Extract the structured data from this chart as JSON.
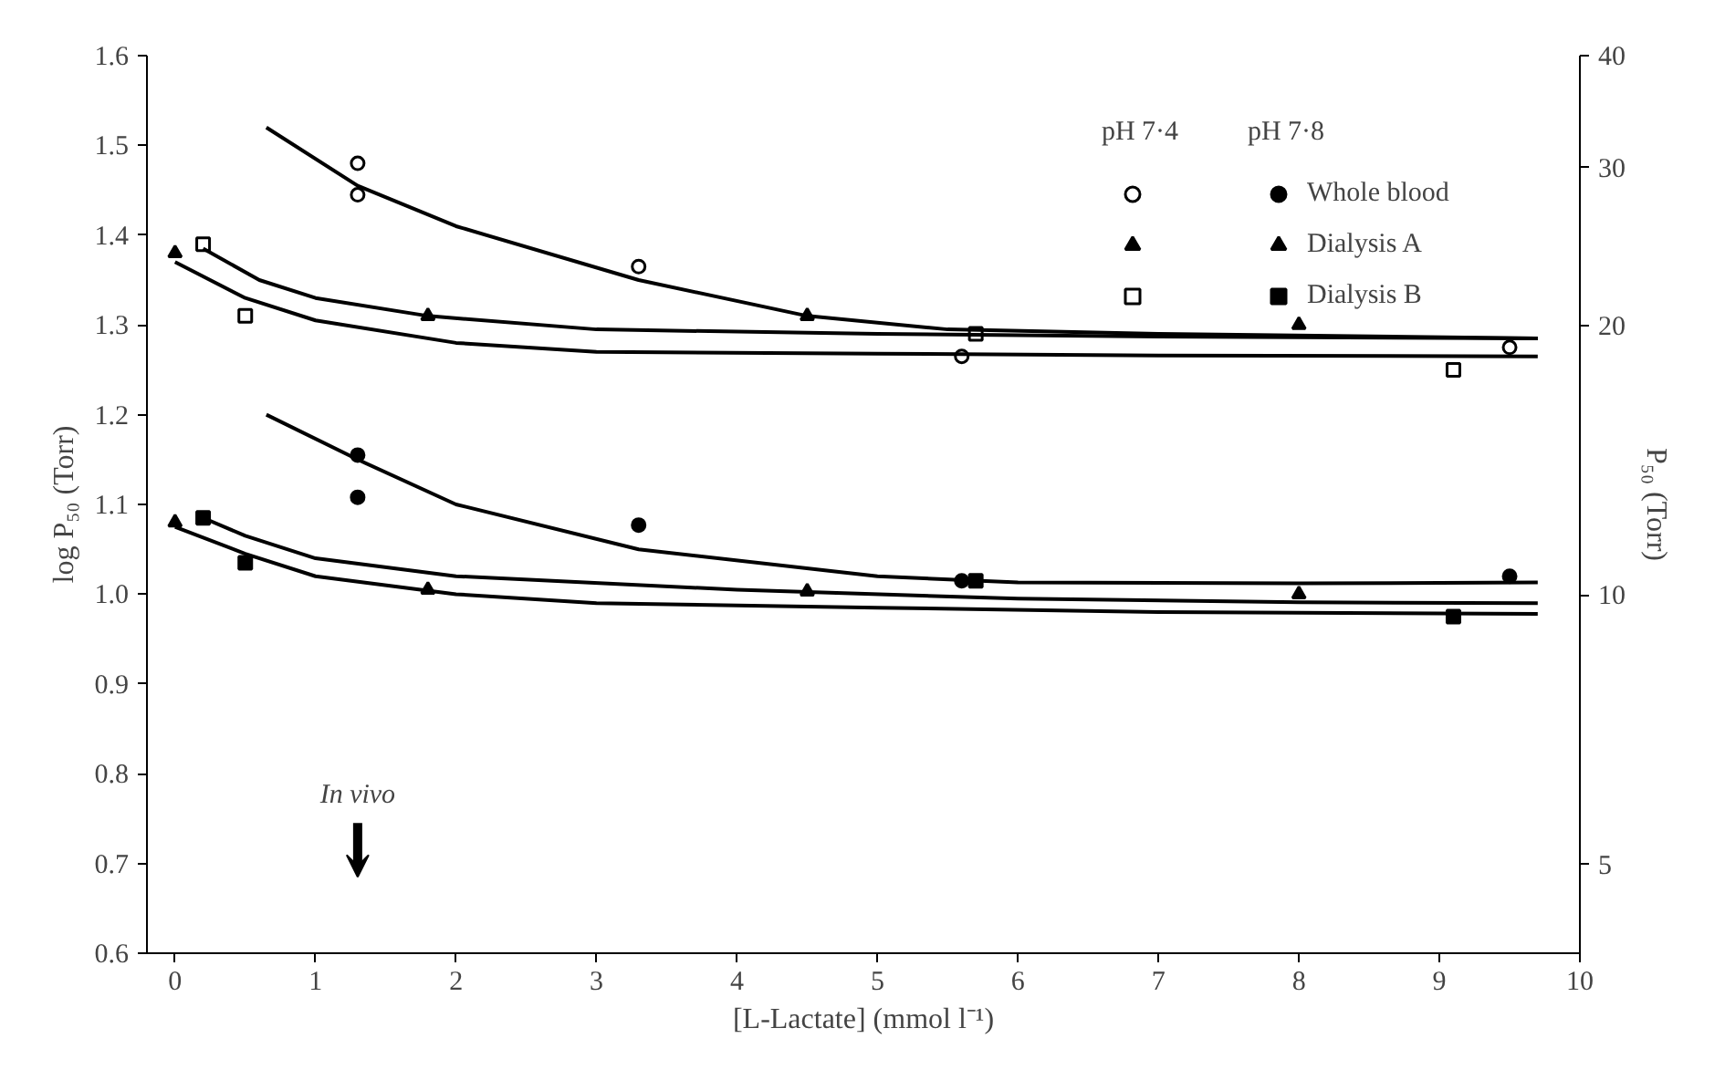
{
  "chart_data": {
    "type": "scatter",
    "xlabel": "[L-Lactate] (mmol l⁻¹)",
    "ylabel": "log P₅₀ (Torr)",
    "y2label": "P₅₀ (Torr)",
    "xlim": [
      -0.2,
      10
    ],
    "xticks": [
      0,
      1,
      2,
      3,
      4,
      5,
      6,
      7,
      8,
      9,
      10
    ],
    "ylim": [
      0.6,
      1.6
    ],
    "yticks": [
      0.6,
      0.7,
      0.8,
      0.9,
      {
        "value": 1.0,
        "label": "1.0"
      },
      1.1,
      1.2,
      1.3,
      1.4,
      1.5,
      1.6
    ],
    "y2lim": [
      3.98,
      40
    ],
    "y2ticks": [
      5,
      10,
      20,
      30,
      40
    ],
    "log": "y2",
    "grid": false,
    "legend": "top right",
    "annotations": [
      "pH 7·4",
      "pH 7·8",
      {
        "text": "In vivo",
        "x": 1.3,
        "y": 0.7
      }
    ],
    "series": [
      {
        "marker": "circle",
        "color": "#000000",
        "x": [
          1.3,
          1.3,
          3.3,
          5.6,
          9.5
        ],
        "values": [
          1.48,
          1.445,
          1.365,
          1.265,
          1.275
        ]
      },
      {
        "marker": "triangle",
        "color": "#000000",
        "x": [
          0,
          1.8,
          4.5,
          8.0
        ],
        "values": [
          1.38,
          1.31,
          1.31,
          1.3
        ]
      },
      {
        "marker": "square",
        "color": "#000000",
        "x": [
          0.2,
          0.5,
          5.7,
          9.1
        ],
        "values": [
          1.39,
          1.31,
          1.29,
          1.25
        ]
      },
      {
        "name": "Whole blood",
        "marker": "circle",
        "color": "#000000",
        "x": [
          1.3,
          1.3,
          3.3,
          5.6,
          9.5
        ],
        "values": [
          1.155,
          1.108,
          1.077,
          1.015,
          1.02
        ]
      },
      {
        "name": "Dialysis A",
        "marker": "triangle",
        "color": "#000000",
        "x": [
          0,
          1.8,
          4.5,
          8.0
        ],
        "values": [
          1.08,
          1.005,
          1.003,
          1.0
        ]
      },
      {
        "name": "Dialysis B",
        "marker": "square",
        "color": "#000000",
        "x": [
          0.2,
          0.5,
          5.7,
          9.1
        ],
        "values": [
          1.085,
          1.035,
          1.015,
          0.975
        ]
      },
      {
        "type": "line",
        "marker": "none",
        "color": "#000000",
        "x": [
          0.65,
          1.3,
          2,
          3.3,
          4.5,
          5.5,
          7,
          9.7
        ],
        "values": [
          1.52,
          1.455,
          1.41,
          1.35,
          1.31,
          1.295,
          1.29,
          1.285
        ]
      },
      {
        "type": "line",
        "marker": "none",
        "color": "#000000",
        "x": [
          0.2,
          0.6,
          1,
          1.8,
          3,
          5,
          7,
          9.7
        ],
        "values": [
          1.385,
          1.35,
          1.33,
          1.31,
          1.295,
          1.29,
          1.287,
          1.285
        ]
      },
      {
        "type": "line",
        "marker": "none",
        "color": "#000000",
        "x": [
          0,
          0.5,
          1,
          2,
          3,
          5,
          7,
          9.7
        ],
        "values": [
          1.37,
          1.33,
          1.305,
          1.28,
          1.27,
          1.268,
          1.266,
          1.265
        ]
      },
      {
        "type": "line",
        "marker": "none",
        "color": "#000000",
        "x": [
          0.65,
          1.3,
          2,
          3.3,
          5,
          6,
          8,
          9.7
        ],
        "values": [
          1.2,
          1.15,
          1.1,
          1.05,
          1.02,
          1.013,
          1.012,
          1.013
        ]
      },
      {
        "type": "line",
        "marker": "none",
        "color": "#000000",
        "x": [
          0.2,
          0.5,
          1,
          2,
          4,
          6,
          8,
          9.7
        ],
        "values": [
          1.085,
          1.065,
          1.04,
          1.02,
          1.005,
          0.995,
          0.991,
          0.99
        ]
      },
      {
        "type": "line",
        "marker": "none",
        "color": "#000000",
        "x": [
          0,
          0.5,
          1,
          2,
          3,
          5,
          7,
          9.7
        ],
        "values": [
          1.075,
          1.045,
          1.02,
          1.0,
          0.99,
          0.985,
          0.98,
          0.978
        ]
      }
    ]
  }
}
